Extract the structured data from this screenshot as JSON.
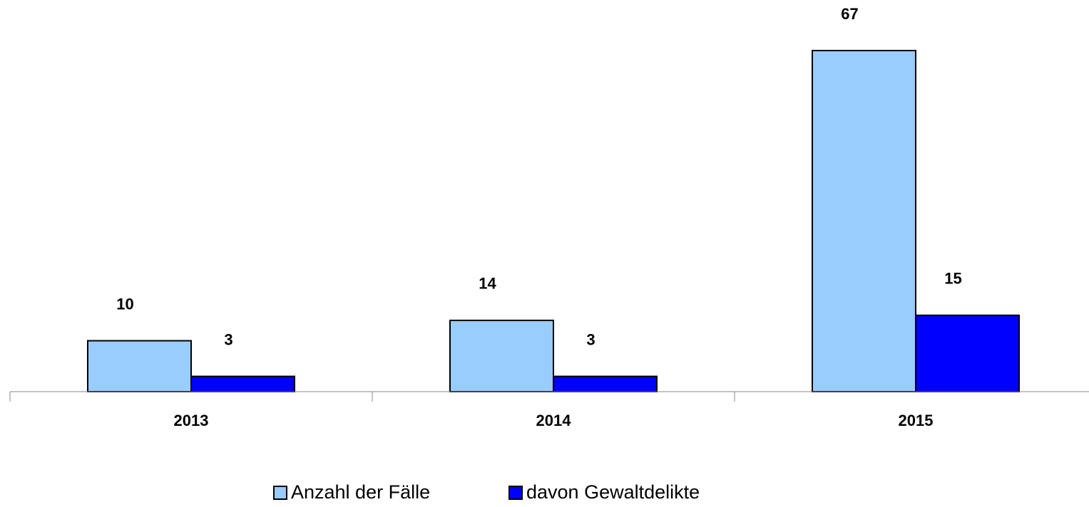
{
  "chart_data": {
    "type": "bar",
    "categories": [
      "2013",
      "2014",
      "2015"
    ],
    "series": [
      {
        "name": "Anzahl der Fälle",
        "color": "#99ccff",
        "values": [
          10,
          14,
          67
        ]
      },
      {
        "name": "davon Gewaltdelikte",
        "color": "#0000ff",
        "values": [
          3,
          3,
          15
        ]
      }
    ],
    "ylim": [
      0,
      67
    ]
  }
}
